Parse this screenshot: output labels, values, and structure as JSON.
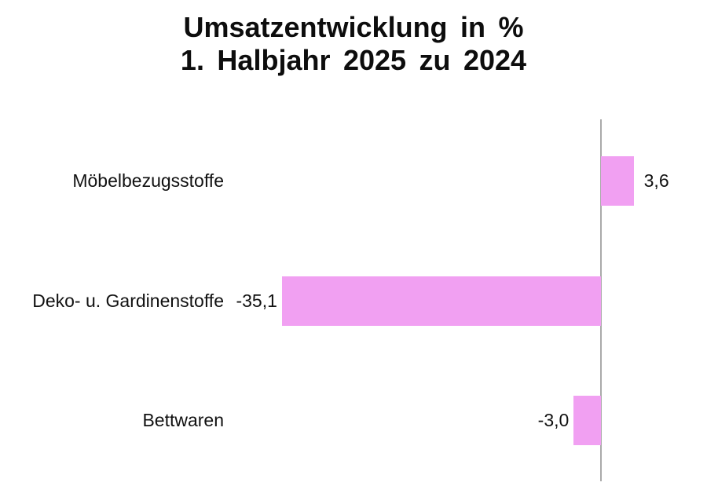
{
  "title": {
    "line1": "Umsatzentwicklung in %",
    "line2": "1. Halbjahr 2025 zu 2024"
  },
  "chart_data": {
    "type": "bar",
    "orientation": "horizontal",
    "title": "Umsatzentwicklung in % 1. Halbjahr 2025 zu 2024",
    "categories": [
      "Möbelbezugsstoffe",
      "Deko- u. Gardinenstoffe",
      "Bettwaren"
    ],
    "values": [
      3.6,
      -35.1,
      -3.0
    ],
    "xlim": [
      -36,
      4
    ],
    "grid": false,
    "legend": false,
    "bar_color": "#F1A0F2",
    "axis_color": "#AAAAAA",
    "rows": [
      {
        "category": "Möbelbezugsstoffe",
        "value": 3.6,
        "label": "3,6"
      },
      {
        "category": "Deko- u. Gardinenstoffe",
        "value": -35.1,
        "label": "-35,1"
      },
      {
        "category": "Bettwaren",
        "value": -3.0,
        "label": "-3,0"
      }
    ]
  }
}
